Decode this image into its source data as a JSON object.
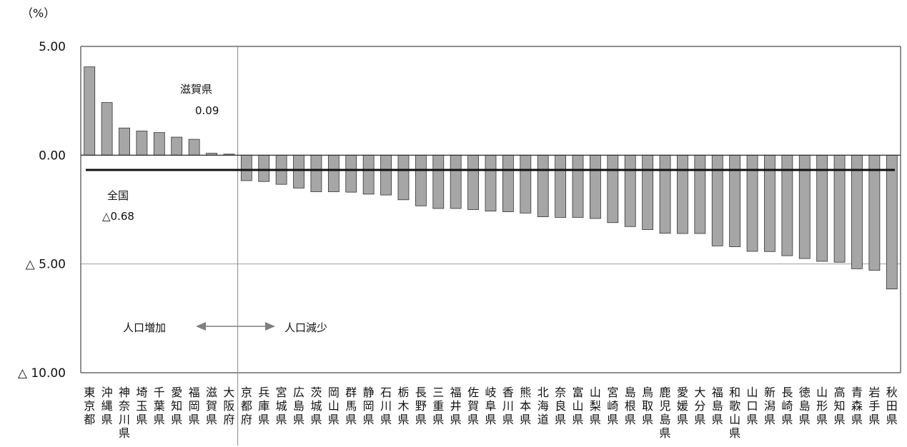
{
  "chart_data": {
    "type": "bar",
    "unit_label": "（%）",
    "ylim": [
      -10,
      5
    ],
    "y_ticks": [
      {
        "value": 5,
        "label": "5.00"
      },
      {
        "value": 0,
        "label": "0.00"
      },
      {
        "value": -5,
        "label": "△ 5.00"
      },
      {
        "value": -10,
        "label": "△ 10.00"
      }
    ],
    "grid": true,
    "bar_color": "#a6a6a6",
    "categories": [
      "東京都",
      "沖縄県",
      "神奈川県",
      "埼玉県",
      "千葉県",
      "愛知県",
      "福岡県",
      "滋賀県",
      "大阪府",
      "京都府",
      "兵庫県",
      "宮城県",
      "広島県",
      "茨城県",
      "岡山県",
      "群馬県",
      "静岡県",
      "石川県",
      "栃木県",
      "長野県",
      "三重県",
      "福井県",
      "佐賀県",
      "岐阜県",
      "香川県",
      "熊本県",
      "北海道",
      "奈良県",
      "富山県",
      "山梨県",
      "宮崎県",
      "島根県",
      "鳥取県",
      "鹿児島県",
      "愛媛県",
      "大分県",
      "福島県",
      "和歌山県",
      "山口県",
      "新潟県",
      "長崎県",
      "徳島県",
      "山形県",
      "高知県",
      "青森県",
      "岩手県",
      "秋田県"
    ],
    "values": [
      4.06,
      2.42,
      1.25,
      1.11,
      1.04,
      0.83,
      0.73,
      0.09,
      0.05,
      -1.17,
      -1.21,
      -1.34,
      -1.51,
      -1.68,
      -1.68,
      -1.7,
      -1.79,
      -1.83,
      -2.05,
      -2.33,
      -2.45,
      -2.45,
      -2.5,
      -2.57,
      -2.6,
      -2.66,
      -2.83,
      -2.86,
      -2.86,
      -2.91,
      -3.1,
      -3.28,
      -3.42,
      -3.59,
      -3.6,
      -3.6,
      -4.17,
      -4.21,
      -4.42,
      -4.43,
      -4.62,
      -4.75,
      -4.88,
      -4.92,
      -5.22,
      -5.29,
      -6.15
    ],
    "national": {
      "value": -0.68,
      "label_name": "全国",
      "label_value": "△0.68",
      "color": "#111111"
    },
    "annotation": {
      "name": "滋賀県",
      "value": "0.09"
    },
    "direction": {
      "increase": "人口増加",
      "decrease": "人口減少",
      "arrow_color": "#7f7f7f"
    }
  }
}
